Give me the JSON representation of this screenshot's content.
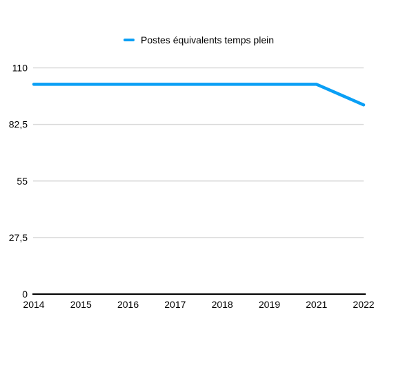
{
  "legend": {
    "label": "Postes équivalents temps plein"
  },
  "colors": {
    "line": "#0a9ff5",
    "grid": "#d9d9d9",
    "axis": "#000000",
    "text": "#000000",
    "background": "#ffffff"
  },
  "chart_data": {
    "type": "line",
    "title": "",
    "xlabel": "",
    "ylabel": "",
    "categories": [
      "2014",
      "2015",
      "2016",
      "2017",
      "2018",
      "2019",
      "2021",
      "2022"
    ],
    "series": [
      {
        "name": "Postes équivalents temps plein",
        "color": "#0a9ff5",
        "values": [
          102,
          102,
          102,
          102,
          102,
          102,
          102,
          92
        ]
      }
    ],
    "ylim": [
      0,
      110
    ],
    "y_ticks": [
      {
        "value": 0,
        "label": "0"
      },
      {
        "value": 27.5,
        "label": "27,5"
      },
      {
        "value": 55,
        "label": "55"
      },
      {
        "value": 82.5,
        "label": "82,5"
      },
      {
        "value": 110,
        "label": "110"
      }
    ],
    "grid": true,
    "legend_position": "top-center"
  }
}
